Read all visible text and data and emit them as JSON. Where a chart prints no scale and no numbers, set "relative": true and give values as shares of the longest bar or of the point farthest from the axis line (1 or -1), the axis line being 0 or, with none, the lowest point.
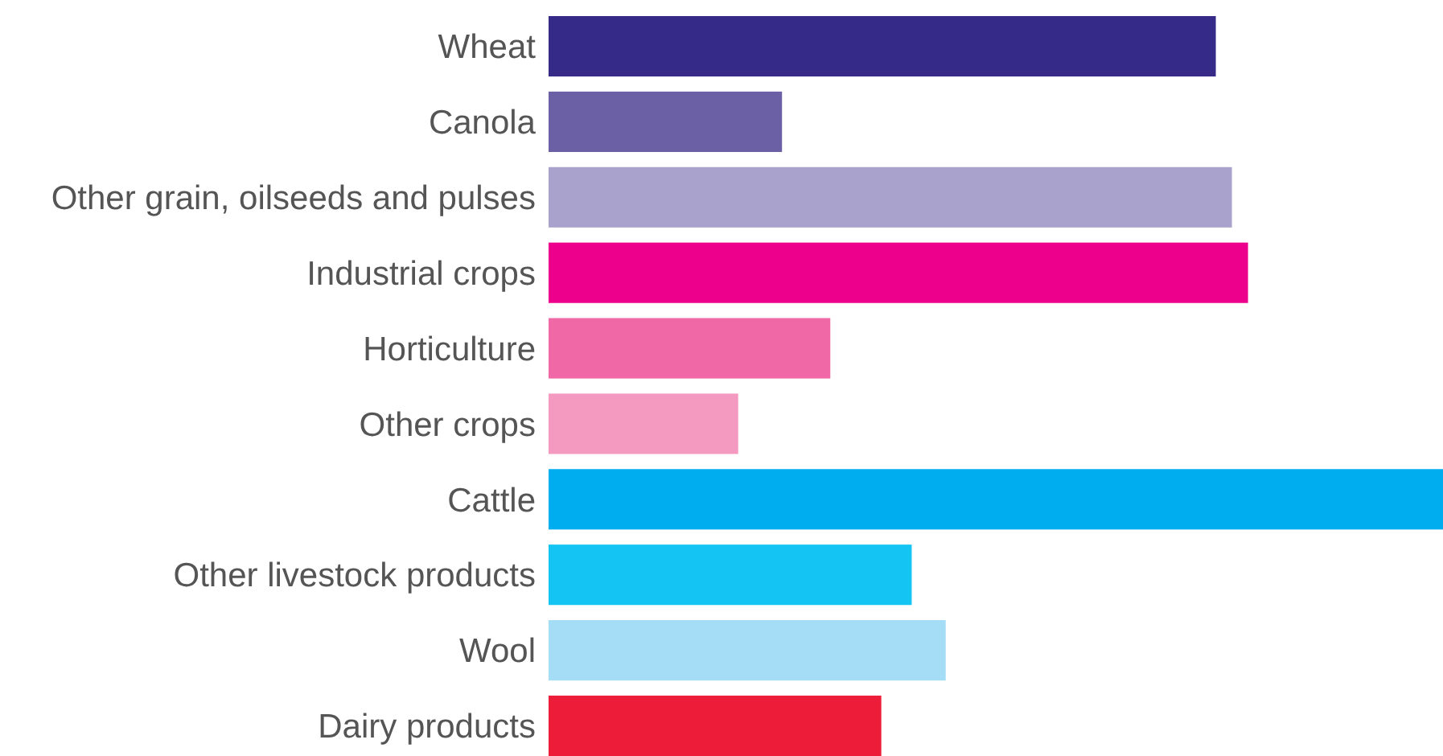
{
  "chart_data": {
    "type": "bar",
    "orientation": "horizontal",
    "relative": true,
    "categories": [
      "Wheat",
      "Canola",
      "Other grain, oilseeds and pulses",
      "Industrial crops",
      "Horticulture",
      "Other crops",
      "Cattle",
      "Other livestock products",
      "Wool",
      "Dairy products"
    ],
    "values": [
      0.746,
      0.261,
      0.764,
      0.782,
      0.315,
      0.212,
      1,
      0.406,
      0.444,
      0.372
    ],
    "colors": [
      "#352a87",
      "#6b5fa5",
      "#a8a2cc",
      "#ec008c",
      "#f068a5",
      "#f49ac1",
      "#00aeef",
      "#14c4f3",
      "#a5dcf6",
      "#ed1c38"
    ]
  }
}
